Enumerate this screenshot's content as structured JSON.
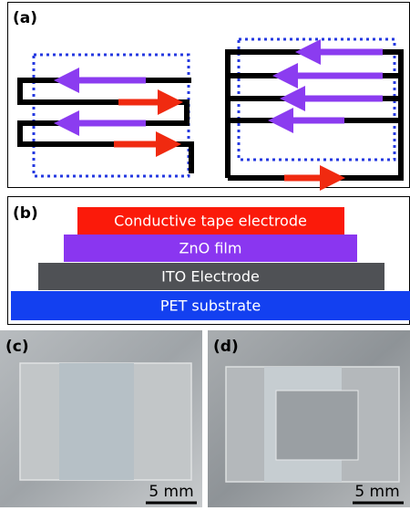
{
  "panel_a": {
    "label": "(a)"
  },
  "panel_b": {
    "label": "(b)",
    "layers": [
      "Conductive tape electrode",
      "ZnO film",
      "ITO Electrode",
      "PET substrate"
    ]
  },
  "panel_c": {
    "label": "(c)",
    "scale": "5 mm"
  },
  "panel_d": {
    "label": "(d)",
    "scale": "5 mm"
  }
}
